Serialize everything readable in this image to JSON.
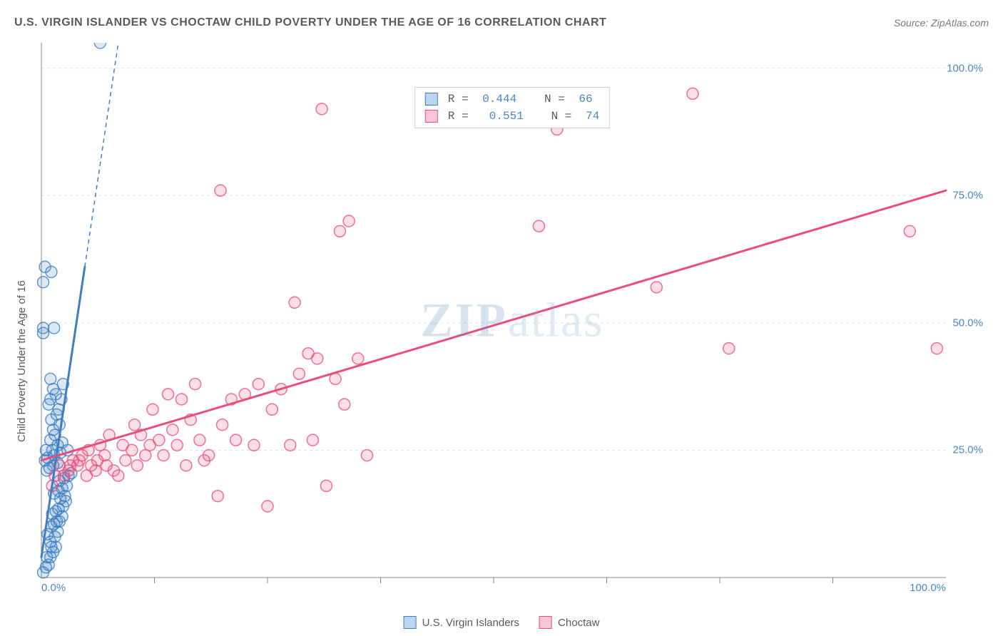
{
  "chart": {
    "type": "scatter-with-regression",
    "title": "U.S. VIRGIN ISLANDER VS CHOCTAW CHILD POVERTY UNDER THE AGE OF 16 CORRELATION CHART",
    "source_label": "Source: ZipAtlas.com",
    "y_axis_label": "Child Poverty Under the Age of 16",
    "watermark": {
      "text_bold": "ZIP",
      "text_light": "atlas"
    },
    "xlim": [
      0,
      100
    ],
    "ylim": [
      0,
      105
    ],
    "grid_color": "#e0e0e0",
    "axis_color": "#888888",
    "background_color": "#ffffff",
    "y_ticks": [
      25,
      50,
      75,
      100
    ],
    "y_tick_labels": [
      "25.0%",
      "50.0%",
      "75.0%",
      "100.0%"
    ],
    "x_ticks": [
      0,
      100
    ],
    "x_tick_labels": [
      "0.0%",
      "100.0%"
    ],
    "x_minor_ticks": [
      12.5,
      25,
      37.5,
      50,
      62.5,
      75,
      87.5
    ],
    "marker_radius": 8,
    "marker_stroke_width": 1.5,
    "marker_fill_opacity": 0.18,
    "line_width": 3,
    "series": [
      {
        "name": "U.S. Virgin Islanders",
        "color": "#3f7fc1",
        "fill": "#bcd5ee",
        "R": 0.444,
        "N": 66,
        "regression": {
          "x1": 0,
          "y1": 4,
          "x2": 4.8,
          "y2": 61,
          "dash_extend_to_y": 105
        },
        "points": [
          [
            0.2,
            1
          ],
          [
            0.5,
            2
          ],
          [
            0.8,
            2.5
          ],
          [
            0.6,
            4
          ],
          [
            1.0,
            4
          ],
          [
            1.3,
            5
          ],
          [
            1.1,
            6
          ],
          [
            1.6,
            6
          ],
          [
            1.0,
            7
          ],
          [
            1.5,
            8
          ],
          [
            0.7,
            8.5
          ],
          [
            1.8,
            9
          ],
          [
            1.1,
            10
          ],
          [
            1.4,
            10.5
          ],
          [
            1.7,
            11
          ],
          [
            2.0,
            11
          ],
          [
            2.3,
            12
          ],
          [
            1.2,
            12.5
          ],
          [
            1.6,
            13
          ],
          [
            1.9,
            13.5
          ],
          [
            2.4,
            14
          ],
          [
            2.7,
            15
          ],
          [
            2.1,
            15.5
          ],
          [
            2.6,
            16
          ],
          [
            1.4,
            16.5
          ],
          [
            1.9,
            17
          ],
          [
            2.3,
            17.5
          ],
          [
            2.8,
            18
          ],
          [
            2.0,
            19
          ],
          [
            2.5,
            19.5
          ],
          [
            3.0,
            20
          ],
          [
            3.3,
            20.5
          ],
          [
            0.6,
            21
          ],
          [
            0.9,
            21.5
          ],
          [
            1.3,
            22
          ],
          [
            1.8,
            22.5
          ],
          [
            0.4,
            23
          ],
          [
            0.7,
            23.5
          ],
          [
            1.4,
            24
          ],
          [
            2.1,
            24.5
          ],
          [
            2.9,
            25
          ],
          [
            1.2,
            25
          ],
          [
            0.5,
            25
          ],
          [
            1.8,
            26
          ],
          [
            2.3,
            26.5
          ],
          [
            1.0,
            27
          ],
          [
            1.5,
            28
          ],
          [
            1.3,
            29
          ],
          [
            2.0,
            30
          ],
          [
            1.1,
            31
          ],
          [
            1.7,
            32
          ],
          [
            1.9,
            33
          ],
          [
            0.8,
            34
          ],
          [
            2.2,
            35
          ],
          [
            1.0,
            35
          ],
          [
            1.6,
            36
          ],
          [
            1.3,
            37
          ],
          [
            2.4,
            38
          ],
          [
            1.0,
            39
          ],
          [
            0.2,
            48
          ],
          [
            0.2,
            49
          ],
          [
            1.4,
            49
          ],
          [
            0.2,
            58
          ],
          [
            1.1,
            60
          ],
          [
            0.4,
            61
          ],
          [
            6.5,
            105
          ]
        ]
      },
      {
        "name": "Choctaw",
        "color": "#e84e7c",
        "fill": "#f8c6d6",
        "R": 0.551,
        "N": 74,
        "regression": {
          "x1": 0,
          "y1": 23,
          "x2": 100,
          "y2": 76
        },
        "points": [
          [
            1.2,
            18
          ],
          [
            1.5,
            20
          ],
          [
            2.0,
            22
          ],
          [
            2.5,
            20
          ],
          [
            3.0,
            21
          ],
          [
            3.2,
            22
          ],
          [
            3.5,
            23
          ],
          [
            4.0,
            22
          ],
          [
            4.2,
            23
          ],
          [
            4.5,
            24
          ],
          [
            5.0,
            20
          ],
          [
            5.2,
            25
          ],
          [
            5.5,
            22
          ],
          [
            6.0,
            21
          ],
          [
            6.2,
            23
          ],
          [
            6.5,
            26
          ],
          [
            7.0,
            24
          ],
          [
            7.2,
            22
          ],
          [
            7.5,
            28
          ],
          [
            8.0,
            21
          ],
          [
            8.5,
            20
          ],
          [
            9.0,
            26
          ],
          [
            9.3,
            23
          ],
          [
            10.0,
            25
          ],
          [
            10.3,
            30
          ],
          [
            10.6,
            22
          ],
          [
            11.0,
            28
          ],
          [
            11.5,
            24
          ],
          [
            12.0,
            26
          ],
          [
            12.3,
            33
          ],
          [
            13.0,
            27
          ],
          [
            13.5,
            24
          ],
          [
            14.0,
            36
          ],
          [
            14.5,
            29
          ],
          [
            15.0,
            26
          ],
          [
            15.5,
            35
          ],
          [
            16.0,
            22
          ],
          [
            16.5,
            31
          ],
          [
            17.0,
            38
          ],
          [
            17.5,
            27
          ],
          [
            18.0,
            23
          ],
          [
            18.5,
            24
          ],
          [
            19.5,
            16
          ],
          [
            19.8,
            76
          ],
          [
            20.0,
            30
          ],
          [
            21.0,
            35
          ],
          [
            21.5,
            27
          ],
          [
            22.5,
            36
          ],
          [
            23.5,
            26
          ],
          [
            24.0,
            38
          ],
          [
            25.0,
            14
          ],
          [
            25.5,
            33
          ],
          [
            26.5,
            37
          ],
          [
            27.5,
            26
          ],
          [
            28.0,
            54
          ],
          [
            28.5,
            40
          ],
          [
            29.5,
            44
          ],
          [
            30.0,
            27
          ],
          [
            30.5,
            43
          ],
          [
            31.0,
            92
          ],
          [
            31.5,
            18
          ],
          [
            32.5,
            39
          ],
          [
            33.0,
            68
          ],
          [
            33.5,
            34
          ],
          [
            34.0,
            70
          ],
          [
            35.0,
            43
          ],
          [
            36.0,
            24
          ],
          [
            55.0,
            69
          ],
          [
            57.0,
            88
          ],
          [
            68.0,
            57
          ],
          [
            72.0,
            95
          ],
          [
            76.0,
            45
          ],
          [
            96.0,
            68
          ],
          [
            99.0,
            45
          ]
        ]
      }
    ],
    "top_legend_display": [
      {
        "swatch": 0,
        "r_label": "R = ",
        "r_value": "0.444",
        "n_label": "   N = ",
        "n_value": "66"
      },
      {
        "swatch": 1,
        "r_label": "R = ",
        "r_value": " 0.551",
        "n_label": "   N = ",
        "n_value": "74"
      }
    ]
  }
}
